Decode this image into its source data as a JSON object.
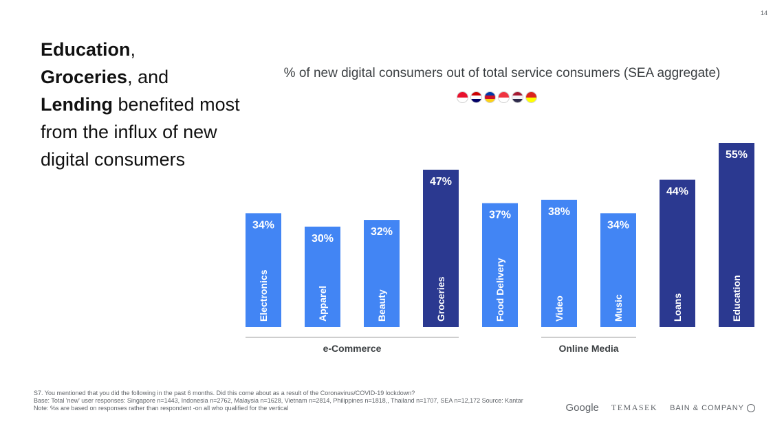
{
  "page_number": "14",
  "headline": {
    "part1_bold": "Education",
    "part2": ",",
    "part3_bold": "Groceries",
    "part4": ", and",
    "part5_bold": "Lending",
    "part6": " benefited most from the influx of new digital consumers"
  },
  "flags": [
    {
      "name": "indonesia-flag-icon",
      "colors": [
        "#e8112d",
        "#ffffff"
      ]
    },
    {
      "name": "malaysia-flag-icon",
      "colors": [
        "#cc0001",
        "#ffffff",
        "#010066"
      ]
    },
    {
      "name": "philippines-flag-icon",
      "colors": [
        "#0038a8",
        "#ce1126",
        "#fcd116"
      ]
    },
    {
      "name": "singapore-flag-icon",
      "colors": [
        "#ef3340",
        "#ffffff"
      ]
    },
    {
      "name": "thailand-flag-icon",
      "colors": [
        "#a51931",
        "#f4f5f8",
        "#2d2a4a"
      ]
    },
    {
      "name": "vietnam-flag-icon",
      "colors": [
        "#da251d",
        "#ffff00"
      ]
    }
  ],
  "chart_data": {
    "type": "bar",
    "title": "% of new digital consumers out of total service consumers (SEA aggregate)",
    "categories": [
      "Electronics",
      "Apparel",
      "Beauty",
      "Groceries",
      "Food Delivery",
      "Video",
      "Music",
      "Loans",
      "Education"
    ],
    "values": [
      34,
      30,
      32,
      47,
      37,
      38,
      34,
      44,
      55
    ],
    "value_labels": [
      "34%",
      "30%",
      "32%",
      "47%",
      "37%",
      "38%",
      "34%",
      "44%",
      "55%"
    ],
    "highlighted": [
      false,
      false,
      false,
      true,
      false,
      false,
      false,
      true,
      true
    ],
    "colors": {
      "default": "#4285f4",
      "highlight": "#2b3990"
    },
    "groups": [
      {
        "label": "e-Commerce",
        "from": 0,
        "to": 3
      },
      {
        "label": "Online Media",
        "from": 5,
        "to": 6
      }
    ],
    "ylim": [
      0,
      55
    ],
    "grid": false,
    "xlabel": "",
    "ylabel": ""
  },
  "footnote": {
    "line1": "S7. You mentioned that you did the following in the past 6 months. Did this come about as a result of the Coronavirus/COVID-19 lockdown?",
    "line2": "Base: Total 'new' user responses: Singapore n=1443, Indonesia n=2762, Malaysia n=1628, Vietnam n=2814, Philippines n=1818,, Thailand n=1707, SEA n=12,172 Source: Kantar",
    "line3": "Note: %s are based on responses rather than respondent -on all who qualified for the vertical"
  },
  "logos": {
    "google": "Google",
    "temasek": "TEMASEK",
    "bain": "BAIN & COMPANY"
  }
}
